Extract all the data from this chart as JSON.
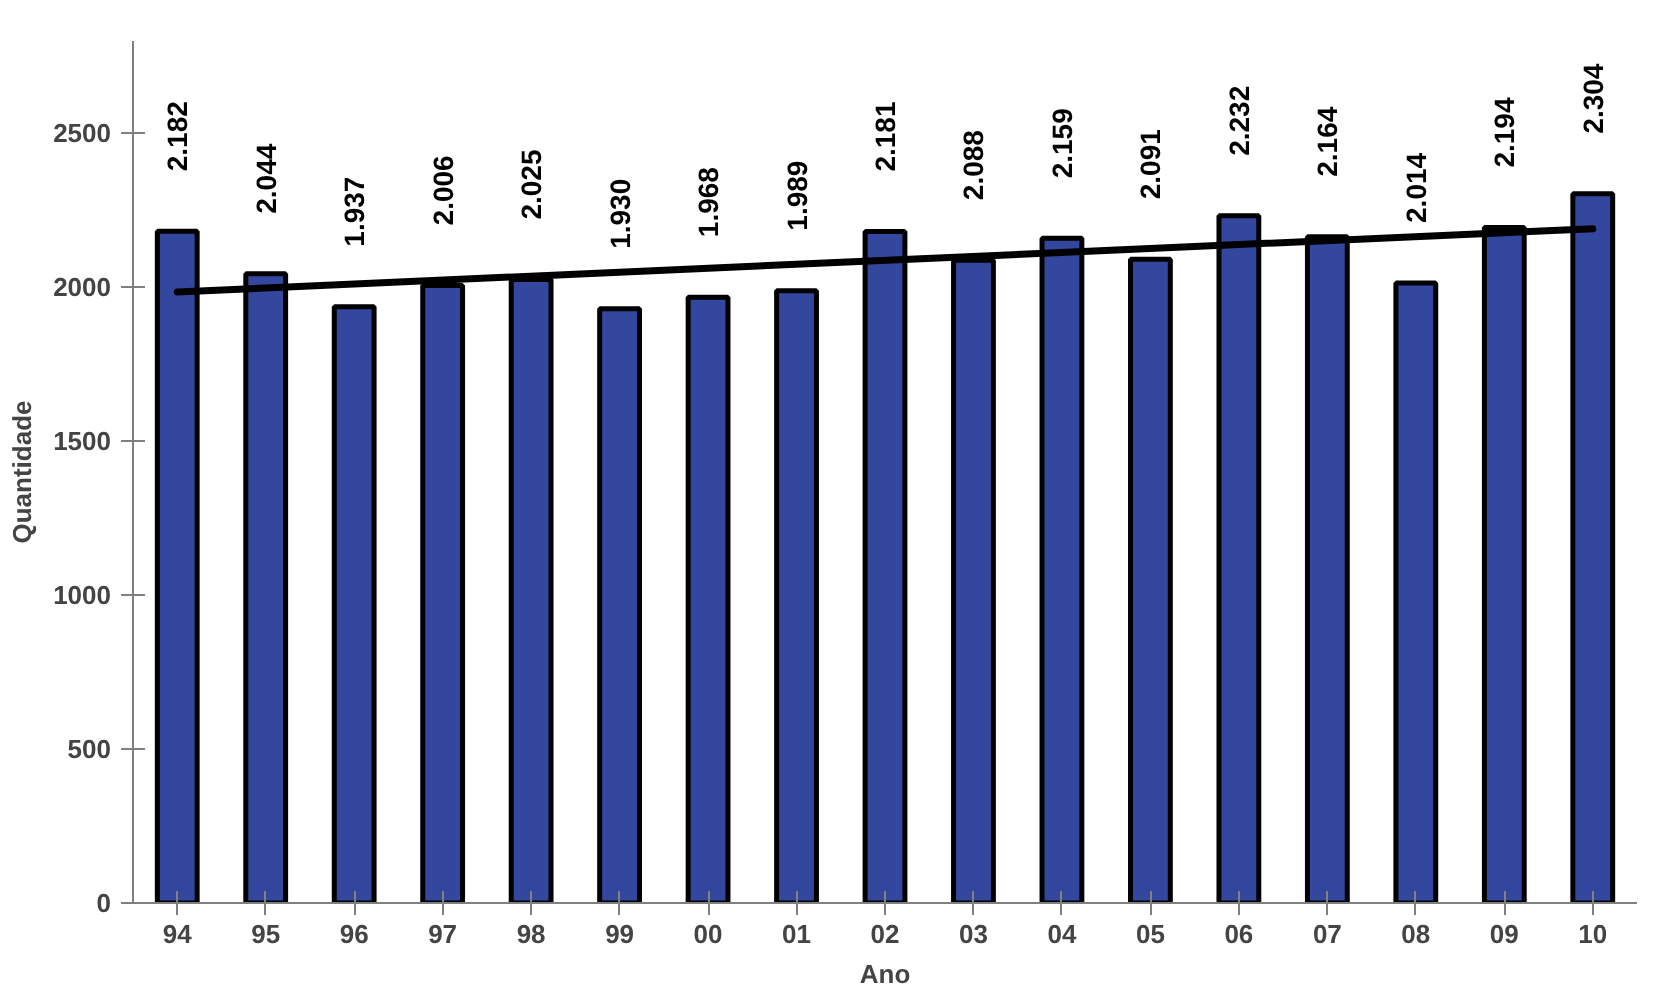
{
  "chart_data": {
    "type": "bar",
    "xlabel": "Ano",
    "ylabel": "Quantidade",
    "categories": [
      "94",
      "95",
      "96",
      "97",
      "98",
      "99",
      "00",
      "01",
      "02",
      "03",
      "04",
      "05",
      "06",
      "07",
      "08",
      "09",
      "10"
    ],
    "ylim": [
      0,
      2800
    ],
    "yticks": [
      0,
      500,
      1000,
      1500,
      2000,
      2500
    ],
    "grid": false,
    "series": [
      {
        "color": "#34479e",
        "values": [
          2182,
          2044,
          1937,
          2006,
          2025,
          1930,
          1968,
          1989,
          2181,
          2088,
          2159,
          2091,
          2232,
          2164,
          2014,
          2194,
          2304
        ],
        "value_labels": [
          "2.182",
          "2.044",
          "1.937",
          "2.006",
          "2.025",
          "1.930",
          "1.968",
          "1.989",
          "2.181",
          "2.088",
          "2.159",
          "2.091",
          "2.232",
          "2.164",
          "2.014",
          "2.194",
          "2.304"
        ]
      },
      {
        "type": "line",
        "color": "#000000",
        "x": [
          "94",
          "10"
        ],
        "values": [
          1985,
          2190
        ]
      }
    ]
  }
}
